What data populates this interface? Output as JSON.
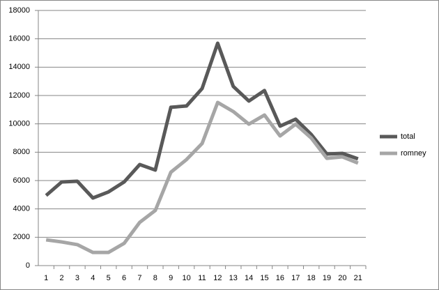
{
  "chart_data": {
    "type": "line",
    "categories": [
      "1",
      "2",
      "3",
      "4",
      "5",
      "6",
      "7",
      "8",
      "9",
      "10",
      "11",
      "12",
      "13",
      "14",
      "15",
      "16",
      "17",
      "18",
      "19",
      "20",
      "21"
    ],
    "series": [
      {
        "name": "total",
        "color": "#595959",
        "values": [
          4950,
          5900,
          5950,
          4770,
          5200,
          5900,
          7130,
          6740,
          11170,
          11260,
          12490,
          15690,
          12640,
          11610,
          12350,
          9840,
          10330,
          9250,
          7870,
          7920,
          7530
        ]
      },
      {
        "name": "romney",
        "color": "#a6a6a6",
        "values": [
          1820,
          1670,
          1480,
          930,
          930,
          1570,
          3050,
          3890,
          6590,
          7480,
          8610,
          11510,
          10870,
          9980,
          10620,
          9150,
          9980,
          9000,
          7570,
          7670,
          7230
        ]
      }
    ],
    "ylim": [
      0,
      18000
    ],
    "yticks": [
      0,
      2000,
      4000,
      6000,
      8000,
      10000,
      12000,
      14000,
      16000,
      18000
    ],
    "grid": true,
    "legend": "right"
  }
}
